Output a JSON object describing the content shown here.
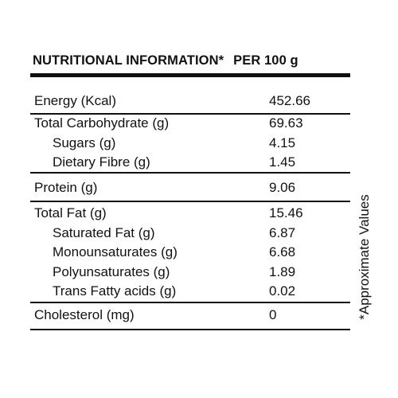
{
  "header": {
    "title": "NUTRITIONAL INFORMATION*",
    "basis": "PER 100 g"
  },
  "rows": [
    {
      "label": "Energy (Kcal)",
      "value": "452.66"
    },
    {
      "label": "Total Carbohydrate  (g)",
      "value": "69.63"
    },
    {
      "label": "Sugars (g)",
      "value": "4.15"
    },
    {
      "label": "Dietary Fibre (g)",
      "value": "1.45"
    },
    {
      "label": "Protein (g)",
      "value": "9.06"
    },
    {
      "label": "Total Fat (g)",
      "value": "15.46"
    },
    {
      "label": "Saturated Fat (g)",
      "value": "6.87"
    },
    {
      "label": "Monounsaturates (g)",
      "value": "6.68"
    },
    {
      "label": "Polyunsaturates (g)",
      "value": "1.89"
    },
    {
      "label": "Trans Fatty acids (g)",
      "value": "0.02"
    },
    {
      "label": "Cholesterol (mg)",
      "value": "0"
    }
  ],
  "footnote": "*Approximate Values"
}
